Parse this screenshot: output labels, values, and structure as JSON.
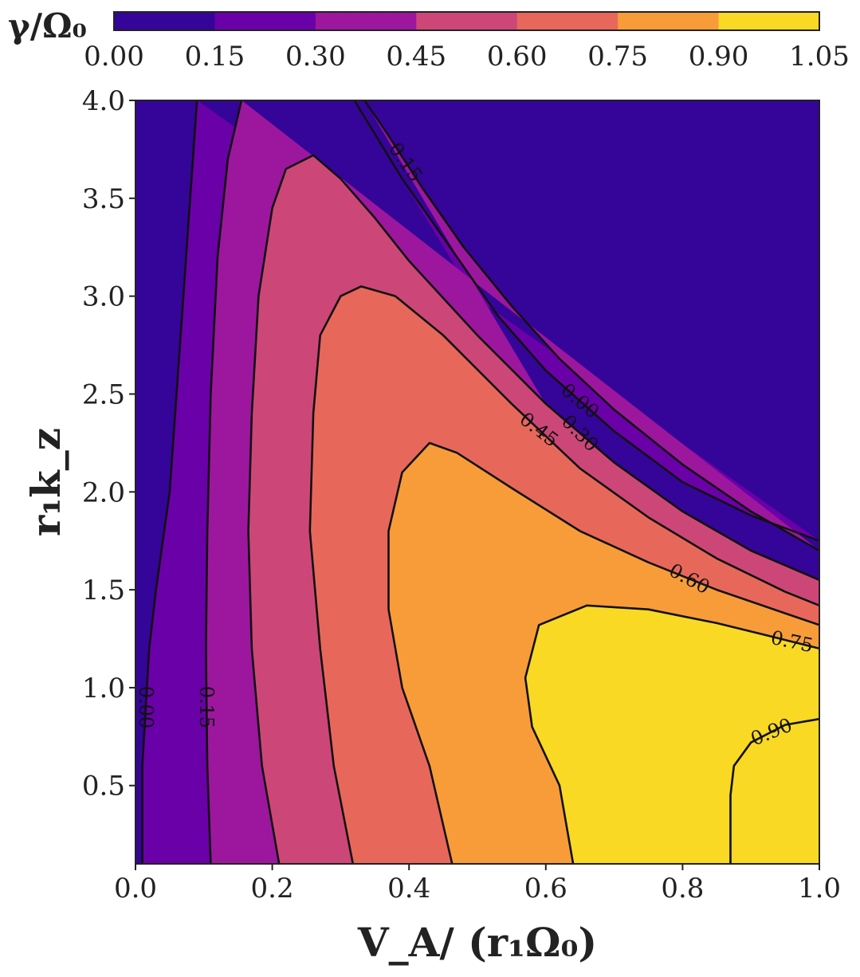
{
  "chart_data": {
    "type": "contour",
    "colorbar": {
      "label": "γ/Ω₀",
      "levels": [
        0.0,
        0.15,
        0.3,
        0.45,
        0.6,
        0.75,
        0.9,
        1.05
      ],
      "tick_labels": [
        "0.00",
        "0.15",
        "0.30",
        "0.45",
        "0.60",
        "0.75",
        "0.90",
        "1.05"
      ],
      "colors": [
        "#350498",
        "#6a00a8",
        "#9c179e",
        "#cc4778",
        "#e7685b",
        "#f89c3a",
        "#f9d923"
      ],
      "placement": "top"
    },
    "xlabel": "V_A/ (r₁Ω₀)",
    "ylabel": "r₁k_z",
    "xlim": [
      0.0,
      1.0
    ],
    "ylim": [
      0.1,
      4.0
    ],
    "xticks": [
      "0.0",
      "0.2",
      "0.4",
      "0.6",
      "0.8",
      "1.0"
    ],
    "xtick_values": [
      0.0,
      0.2,
      0.4,
      0.6,
      0.8,
      1.0
    ],
    "yticks": [
      "0.5",
      "1.0",
      "1.5",
      "2.0",
      "2.5",
      "3.0",
      "3.5",
      "4.0"
    ],
    "ytick_values": [
      0.5,
      1.0,
      1.5,
      2.0,
      2.5,
      3.0,
      3.5,
      4.0
    ],
    "contours": [
      {
        "level": 0.0,
        "label": "0.00",
        "points": [
          [
            0.01,
            0.1
          ],
          [
            0.01,
            0.6
          ],
          [
            0.02,
            1.2
          ],
          [
            0.03,
            1.5
          ],
          [
            0.05,
            2.0
          ],
          [
            0.06,
            2.5
          ],
          [
            0.07,
            3.0
          ],
          [
            0.08,
            3.5
          ],
          [
            0.09,
            4.0
          ]
        ]
      },
      {
        "level": 0.0,
        "label": "0.00",
        "points": [
          [
            0.32,
            4.0
          ],
          [
            0.39,
            3.6
          ],
          [
            0.46,
            3.25
          ],
          [
            0.53,
            2.9
          ],
          [
            0.6,
            2.62
          ],
          [
            0.7,
            2.31
          ],
          [
            0.8,
            2.05
          ],
          [
            0.9,
            1.88
          ],
          [
            1.0,
            1.75
          ]
        ]
      },
      {
        "level": 0.15,
        "label": "0.15",
        "points": [
          [
            0.11,
            0.1
          ],
          [
            0.105,
            0.6
          ],
          [
            0.103,
            1.2
          ],
          [
            0.105,
            1.8
          ],
          [
            0.11,
            2.5
          ],
          [
            0.12,
            3.2
          ],
          [
            0.135,
            3.7
          ],
          [
            0.155,
            4.0
          ]
        ]
      },
      {
        "level": 0.15,
        "label": "0.15",
        "points": [
          [
            0.335,
            4.0
          ],
          [
            0.37,
            3.82
          ],
          [
            0.42,
            3.55
          ],
          [
            0.48,
            3.25
          ],
          [
            0.55,
            2.95
          ],
          [
            0.62,
            2.68
          ],
          [
            0.7,
            2.42
          ],
          [
            0.8,
            2.14
          ],
          [
            0.9,
            1.9
          ],
          [
            1.0,
            1.7
          ]
        ]
      },
      {
        "level": 0.3,
        "label": "0.30",
        "points": [
          [
            0.21,
            0.1
          ],
          [
            0.185,
            0.6
          ],
          [
            0.17,
            1.2
          ],
          [
            0.165,
            1.8
          ],
          [
            0.17,
            2.4
          ],
          [
            0.18,
            3.0
          ],
          [
            0.2,
            3.45
          ],
          [
            0.22,
            3.65
          ],
          [
            0.26,
            3.72
          ],
          [
            0.3,
            3.6
          ],
          [
            0.35,
            3.4
          ],
          [
            0.4,
            3.18
          ],
          [
            0.5,
            2.8
          ],
          [
            0.6,
            2.45
          ],
          [
            0.7,
            2.15
          ],
          [
            0.8,
            1.9
          ],
          [
            0.9,
            1.7
          ],
          [
            1.0,
            1.55
          ]
        ]
      },
      {
        "level": 0.45,
        "label": "0.45",
        "points": [
          [
            0.318,
            0.1
          ],
          [
            0.29,
            0.6
          ],
          [
            0.27,
            1.2
          ],
          [
            0.255,
            1.8
          ],
          [
            0.26,
            2.4
          ],
          [
            0.27,
            2.8
          ],
          [
            0.3,
            3.0
          ],
          [
            0.33,
            3.05
          ],
          [
            0.38,
            3.0
          ],
          [
            0.45,
            2.8
          ],
          [
            0.55,
            2.45
          ],
          [
            0.65,
            2.12
          ],
          [
            0.75,
            1.87
          ],
          [
            0.85,
            1.66
          ],
          [
            0.95,
            1.49
          ],
          [
            1.0,
            1.42
          ]
        ]
      },
      {
        "level": 0.6,
        "label": "0.60",
        "points": [
          [
            0.463,
            0.1
          ],
          [
            0.43,
            0.6
          ],
          [
            0.39,
            1.0
          ],
          [
            0.37,
            1.4
          ],
          [
            0.37,
            1.8
          ],
          [
            0.39,
            2.1
          ],
          [
            0.43,
            2.25
          ],
          [
            0.47,
            2.2
          ],
          [
            0.55,
            2.02
          ],
          [
            0.65,
            1.8
          ],
          [
            0.75,
            1.64
          ],
          [
            0.85,
            1.5
          ],
          [
            0.95,
            1.38
          ],
          [
            1.0,
            1.32
          ]
        ]
      },
      {
        "level": 0.75,
        "label": "0.75",
        "points": [
          [
            0.64,
            0.1
          ],
          [
            0.62,
            0.5
          ],
          [
            0.58,
            0.8
          ],
          [
            0.57,
            1.05
          ],
          [
            0.59,
            1.32
          ],
          [
            0.66,
            1.42
          ],
          [
            0.75,
            1.4
          ],
          [
            0.85,
            1.33
          ],
          [
            0.92,
            1.27
          ],
          [
            1.0,
            1.2
          ]
        ]
      },
      {
        "level": 0.9,
        "label": "0.90",
        "points": [
          [
            0.87,
            0.1
          ],
          [
            0.87,
            0.45
          ],
          [
            0.875,
            0.6
          ],
          [
            0.9,
            0.72
          ],
          [
            0.95,
            0.81
          ],
          [
            1.0,
            0.84
          ]
        ]
      }
    ]
  }
}
